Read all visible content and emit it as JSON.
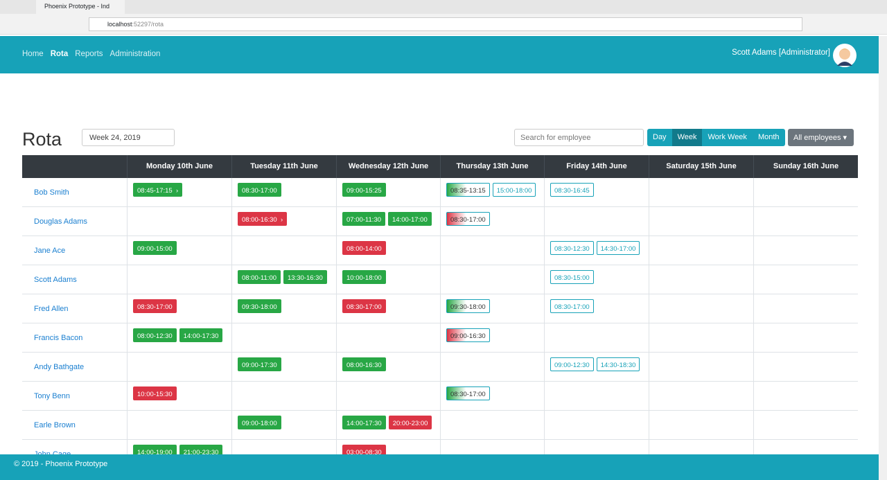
{
  "browser": {
    "tab_title": "Phoenix Prototype - Ind",
    "url_host": "localhost",
    "url_path": ":52297/rota"
  },
  "nav": {
    "links": [
      {
        "label": "Home",
        "active": false
      },
      {
        "label": "Rota",
        "active": true
      },
      {
        "label": "Reports",
        "active": false
      },
      {
        "label": "Administration",
        "active": false
      }
    ],
    "user": "Scott Adams [Administrator]"
  },
  "page": {
    "title": "Rota",
    "week": "Week 24, 2019",
    "search_placeholder": "Search for employee",
    "views": [
      {
        "label": "Day",
        "active": false
      },
      {
        "label": "Week",
        "active": true
      },
      {
        "label": "Work Week",
        "active": false
      },
      {
        "label": "Month",
        "active": false
      }
    ],
    "filter": "All employees"
  },
  "table": {
    "headers": [
      "Monday 10th June",
      "Tuesday 11th June",
      "Wednesday 12th June",
      "Thursday 13th June",
      "Friday 14th June",
      "Saturday 15th June",
      "Sunday 16th June"
    ],
    "rows": [
      {
        "name": "Bob Smith",
        "days": [
          [
            {
              "time": "08:45-17:15",
              "style": "green",
              "arrow": true
            }
          ],
          [
            {
              "time": "08:30-17:00",
              "style": "green"
            }
          ],
          [
            {
              "time": "09:00-15:25",
              "style": "green"
            }
          ],
          [
            {
              "time": "08:35-13:15",
              "style": "fade-green"
            },
            {
              "time": "15:00-18:00",
              "style": "outline"
            }
          ],
          [
            {
              "time": "08:30-16:45",
              "style": "outline"
            }
          ],
          [],
          []
        ]
      },
      {
        "name": "Douglas Adams",
        "days": [
          [],
          [
            {
              "time": "08:00-16:30",
              "style": "red",
              "arrow": true
            }
          ],
          [
            {
              "time": "07:00-11:30",
              "style": "green"
            },
            {
              "time": "14:00-17:00",
              "style": "green"
            }
          ],
          [
            {
              "time": "08:30-17:00",
              "style": "fade-red"
            }
          ],
          [],
          [],
          []
        ]
      },
      {
        "name": "Jane Ace",
        "days": [
          [
            {
              "time": "09:00-15:00",
              "style": "green"
            }
          ],
          [],
          [
            {
              "time": "08:00-14:00",
              "style": "red"
            }
          ],
          [],
          [
            {
              "time": "08:30-12:30",
              "style": "outline"
            },
            {
              "time": "14:30-17:00",
              "style": "outline"
            }
          ],
          [],
          []
        ]
      },
      {
        "name": "Scott Adams",
        "days": [
          [],
          [
            {
              "time": "08:00-11:00",
              "style": "green"
            },
            {
              "time": "13:30-16:30",
              "style": "green"
            }
          ],
          [
            {
              "time": "10:00-18:00",
              "style": "green"
            }
          ],
          [],
          [
            {
              "time": "08:30-15:00",
              "style": "outline"
            }
          ],
          [],
          []
        ]
      },
      {
        "name": "Fred Allen",
        "days": [
          [
            {
              "time": "08:30-17:00",
              "style": "red"
            }
          ],
          [
            {
              "time": "09:30-18:00",
              "style": "green"
            }
          ],
          [
            {
              "time": "08:30-17:00",
              "style": "red"
            }
          ],
          [
            {
              "time": "09:30-18:00",
              "style": "fade-green"
            }
          ],
          [
            {
              "time": "08:30-17:00",
              "style": "outline"
            }
          ],
          [],
          []
        ]
      },
      {
        "name": "Francis Bacon",
        "days": [
          [
            {
              "time": "08:00-12:30",
              "style": "green"
            },
            {
              "time": "14:00-17:30",
              "style": "green"
            }
          ],
          [],
          [],
          [
            {
              "time": "09:00-16:30",
              "style": "fade-red"
            }
          ],
          [],
          [],
          []
        ]
      },
      {
        "name": "Andy Bathgate",
        "days": [
          [],
          [
            {
              "time": "09:00-17:30",
              "style": "green"
            }
          ],
          [
            {
              "time": "08:00-16:30",
              "style": "green"
            }
          ],
          [],
          [
            {
              "time": "09:00-12:30",
              "style": "outline"
            },
            {
              "time": "14:30-18:30",
              "style": "outline"
            }
          ],
          [],
          []
        ]
      },
      {
        "name": "Tony Benn",
        "days": [
          [
            {
              "time": "10:00-15:30",
              "style": "red"
            }
          ],
          [],
          [],
          [
            {
              "time": "08:30-17:00",
              "style": "fade-green"
            }
          ],
          [],
          [],
          []
        ]
      },
      {
        "name": "Earle Brown",
        "days": [
          [],
          [
            {
              "time": "09:00-18:00",
              "style": "green"
            }
          ],
          [
            {
              "time": "14:00-17:30",
              "style": "green"
            },
            {
              "time": "20:00-23:00",
              "style": "red"
            }
          ],
          [],
          [],
          [],
          []
        ]
      },
      {
        "name": "John Cage",
        "days": [
          [
            {
              "time": "14:00-19:00",
              "style": "green"
            },
            {
              "time": "21:00-23:30",
              "style": "green"
            }
          ],
          [],
          [
            {
              "time": "03:00-08:30",
              "style": "red"
            }
          ],
          [],
          [],
          [],
          []
        ]
      }
    ]
  },
  "footer": "© 2019 - Phoenix Prototype"
}
